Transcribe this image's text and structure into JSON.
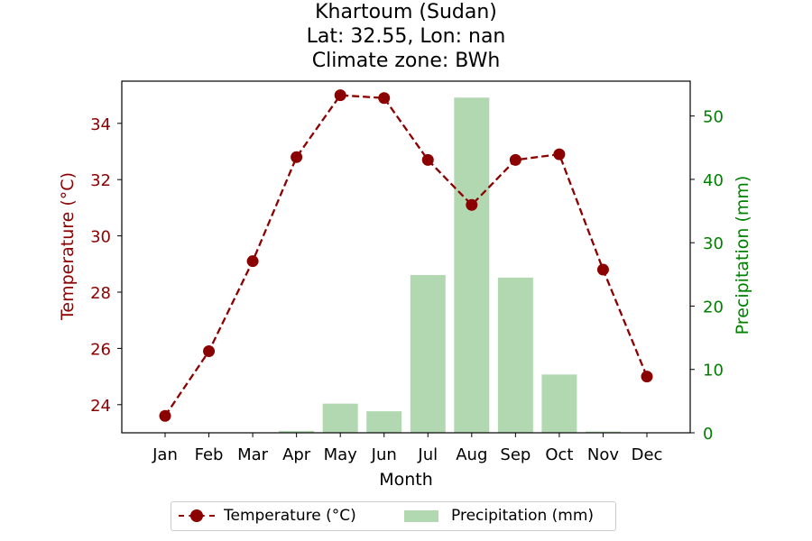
{
  "title": {
    "line1": "Khartoum (Sudan)",
    "line2": "Lat: 32.55, Lon: nan",
    "line3": "Climate zone: BWh"
  },
  "legend": {
    "temperature_label": "Temperature (°C)",
    "precipitation_label": "Precipitation (mm)"
  },
  "colors": {
    "temperature": "#8b0000",
    "precipitation": "#b2d8b2",
    "precip_axis": "#008000"
  },
  "chart_data": {
    "type": "bar",
    "title": "Khartoum (Sudan)\nLat: 32.55, Lon: nan\nClimate zone: BWh",
    "xlabel": "Month",
    "ylabel": "Temperature (°C)",
    "y2label": "Precipitation (mm)",
    "categories": [
      "Jan",
      "Feb",
      "Mar",
      "Apr",
      "May",
      "Jun",
      "Jul",
      "Aug",
      "Sep",
      "Oct",
      "Nov",
      "Dec"
    ],
    "series": [
      {
        "name": "Temperature (°C)",
        "type": "line",
        "axis": "left",
        "values": [
          23.6,
          25.9,
          29.1,
          32.8,
          35.0,
          34.9,
          32.7,
          31.1,
          32.7,
          32.9,
          28.8,
          25.0
        ]
      },
      {
        "name": "Precipitation (mm)",
        "type": "bar",
        "axis": "right",
        "values": [
          0,
          0,
          0,
          0.3,
          4.6,
          3.4,
          24.9,
          52.9,
          24.5,
          9.2,
          0.2,
          0
        ]
      }
    ],
    "ylim": [
      23.0,
      35.5
    ],
    "y2lim": [
      0,
      55.5
    ],
    "yticks": [
      24,
      26,
      28,
      30,
      32,
      34
    ],
    "y2ticks": [
      0,
      10,
      20,
      30,
      40,
      50
    ],
    "grid": false,
    "legend_position": "bottom-center"
  }
}
